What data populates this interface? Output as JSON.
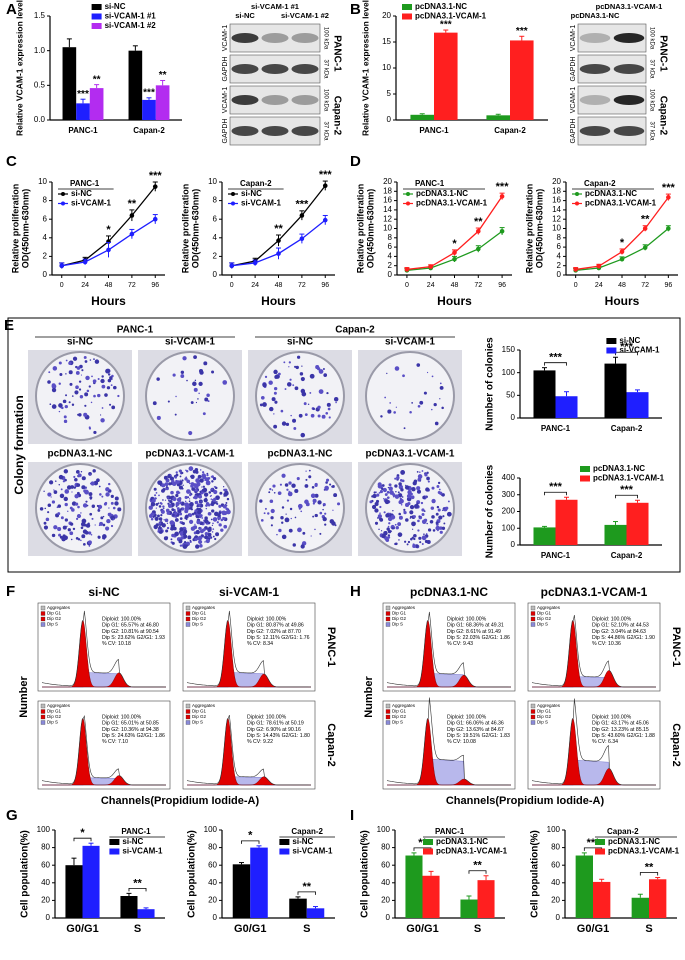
{
  "panel_labels": [
    "A",
    "B",
    "C",
    "D",
    "E",
    "F",
    "G",
    "H",
    "I"
  ],
  "blots": [
    {
      "lanes": [
        "si-NC",
        "si-VCAM-1 #1",
        "si-VCAM-1 #2"
      ],
      "rows": [
        "VCAM-1",
        "GAPDH",
        "VCAM-1",
        "GAPDH"
      ],
      "sizes": [
        "100 kDa",
        "37 kDa",
        "100 kDa",
        "37 kDa"
      ],
      "cell_lines": [
        "PANC-1",
        "Capan-2"
      ]
    },
    {
      "lanes": [
        "pcDNA3.1-NC",
        "pcDNA3.1-VCAM-1"
      ],
      "rows": [
        "VCAM-1",
        "GAPDH",
        "VCAM-1",
        "GAPDH"
      ],
      "sizes": [
        "100 kDa",
        "37 kDa",
        "100 kDa",
        "37 kDa"
      ],
      "cell_lines": [
        "PANC-1",
        "Capan-2"
      ]
    }
  ],
  "colony_formation": {
    "title": "Colony formation",
    "cell_lines": [
      "PANC-1",
      "Capan-2"
    ],
    "plates": [
      [
        "si-NC",
        "si-VCAM-1",
        "si-NC",
        "si-VCAM-1"
      ],
      [
        "pcDNA3.1-NC",
        "pcDNA3.1-VCAM-1",
        "pcDNA3.1-NC",
        "pcDNA3.1-VCAM-1"
      ]
    ]
  },
  "flow_cytometry": [
    {
      "conditions": [
        "si-NC",
        "si-VCAM-1"
      ],
      "cell_lines": [
        "PANC-1",
        "Capan-2"
      ],
      "legend": [
        "Aggregates",
        "Dip G1",
        "Dip G2",
        "Dip S"
      ],
      "y_label": "Number",
      "x_label": "Channels(Propidium Iodide-A)",
      "stats": [
        [
          [
            "Diploid: 100.00%",
            "Dip G1: 65.57% at 46.80",
            "Dip G2: 10.81% at 90.54",
            "Dip S: 23.62% G2/G1: 1.93",
            "% CV: 10.18"
          ],
          [
            "Diploid: 100.00%",
            "Dip G1: 80.87% at 49.86",
            "Dip G2: 7.02% at 87.70",
            "Dip S: 12.11% G2/G1: 1.76",
            "% CV: 8.34"
          ]
        ],
        [
          [
            "Diploid: 100.00%",
            "Dip G1: 65.01% at 50.85",
            "Dip G2: 10.36% at 94.38",
            "Dip S: 24.63% G2/G1: 1.86",
            "% CV: 7.10"
          ],
          [
            "Diploid: 100.00%",
            "Dip G1: 78.61% at 50.19",
            "Dip G2: 6.90% at 90.16",
            "Dip S: 14.43% G2/G1: 1.80",
            "% CV: 9.22"
          ]
        ]
      ]
    },
    {
      "conditions": [
        "pcDNA3.1-NC",
        "pcDNA3.1-VCAM-1"
      ],
      "cell_lines": [
        "PANC-1",
        "Capan-2"
      ],
      "legend": [
        "Aggregates",
        "Dip G1",
        "Dip G2",
        "Dip S"
      ],
      "y_label": "Number",
      "x_label": "Channels(Propidium Iodide-A)",
      "stats": [
        [
          [
            "Diploid: 100.00%",
            "Dip G1: 68.36% at 49.31",
            "Dip G2: 8.61% at 91.49",
            "Dip S: 22.03% G2/G1: 1.86",
            "% CV: 9.43"
          ],
          [
            "Diploid: 100.00%",
            "Dip G1: 52.10% at 44.53",
            "Dip G2: 3.04% at 84.63",
            "Dip S: 44.86% G2/G1: 1.90",
            "% CV: 10.36"
          ]
        ],
        [
          [
            "Diploid: 100.00%",
            "Dip G1: 66.06% at 46.36",
            "Dip G2: 13.63% at 84.67",
            "Dip S: 19.51% G2/G1: 1.83",
            "% CV: 10.08"
          ],
          [
            "Diploid: 100.00%",
            "Dip G1: 43.17% at 45.06",
            "Dip G2: 13.23% at 85.15",
            "Dip S: 43.60% G2/G1: 1.88",
            "% CV: 6.34"
          ]
        ]
      ]
    }
  ],
  "chart_data": [
    {
      "type": "bar",
      "y_label": "Relative VCAM-1 expression level",
      "categories": [
        "PANC-1",
        "Capan-2"
      ],
      "legend": "upper center",
      "ylim": [
        0,
        1.5
      ],
      "yticks": [
        {
          "value": 0,
          "label": "0.0"
        },
        0.5,
        {
          "value": 1,
          "label": "1.0"
        },
        1.5
      ],
      "series": [
        {
          "name": "si-NC",
          "color": "#000000",
          "values": [
            1.05,
            1.0
          ],
          "errors": [
            0.12,
            0.07
          ]
        },
        {
          "name": "si-VCAM-1 #1",
          "color": "#1f1fff",
          "values": [
            0.24,
            0.29
          ],
          "errors": [
            0.06,
            0.03
          ],
          "significance": [
            "***",
            "***"
          ]
        },
        {
          "name": "si-VCAM-1 #2",
          "color": "#b32cf0",
          "values": [
            0.46,
            0.5
          ],
          "errors": [
            0.05,
            0.07
          ],
          "significance": [
            "**",
            "**"
          ]
        }
      ]
    },
    {
      "type": "bar",
      "y_label": "Relative VCAM-1 expression level",
      "categories": [
        "PANC-1",
        "Capan-2"
      ],
      "legend": "upper left",
      "ylim": [
        0,
        20
      ],
      "yticks": [
        0,
        5,
        10,
        15,
        20
      ],
      "series": [
        {
          "name": "pcDNA3.1-NC",
          "color": "#1e9a1e",
          "values": [
            1.0,
            0.9
          ],
          "errors": [
            0.2,
            0.2
          ]
        },
        {
          "name": "pcDNA3.1-VCAM-1",
          "color": "#ff1f1f",
          "values": [
            16.8,
            15.3
          ],
          "errors": [
            0.5,
            0.8
          ],
          "significance": [
            "***",
            "***"
          ]
        }
      ]
    },
    {
      "type": "line",
      "legend_title": "PANC-1",
      "legend": "upper left",
      "x_label": "Hours",
      "y_label": [
        "Relative proliferation",
        "OD(450nm-630nm)"
      ],
      "x": [
        0,
        24,
        48,
        72,
        96
      ],
      "xlim": [
        -10,
        106
      ],
      "xticks": [
        0,
        24,
        48,
        72,
        96
      ],
      "ylim": [
        0,
        10
      ],
      "yticks": [
        0,
        2,
        4,
        6,
        8,
        10
      ],
      "significance": [
        null,
        null,
        "*",
        "**",
        "***"
      ],
      "series": [
        {
          "name": "si-NC",
          "color": "#000000",
          "values": [
            1.0,
            1.6,
            3.6,
            6.4,
            9.5
          ],
          "errors": [
            0.3,
            0.3,
            0.6,
            0.6,
            0.5
          ]
        },
        {
          "name": "si-VCAM-1",
          "color": "#1f1fff",
          "values": [
            1.0,
            1.4,
            2.7,
            4.4,
            6.0
          ],
          "errors": [
            0.3,
            0.3,
            0.8,
            0.5,
            0.5
          ]
        }
      ]
    },
    {
      "type": "line",
      "legend_title": "Capan-2",
      "legend": "upper left",
      "x_label": "Hours",
      "y_label": [
        "Relative proliferation",
        "OD(450nm-630nm)"
      ],
      "x": [
        0,
        24,
        48,
        72,
        96
      ],
      "xlim": [
        -10,
        106
      ],
      "xticks": [
        0,
        24,
        48,
        72,
        96
      ],
      "ylim": [
        0,
        10
      ],
      "yticks": [
        0,
        2,
        4,
        6,
        8,
        10
      ],
      "significance": [
        null,
        null,
        "**",
        "***",
        "***"
      ],
      "series": [
        {
          "name": "si-NC",
          "color": "#000000",
          "values": [
            1.0,
            1.5,
            3.7,
            6.4,
            9.6
          ],
          "errors": [
            0.3,
            0.3,
            0.6,
            0.5,
            0.5
          ]
        },
        {
          "name": "si-VCAM-1",
          "color": "#1f1fff",
          "values": [
            1.0,
            1.3,
            2.3,
            3.9,
            5.9
          ],
          "errors": [
            0.3,
            0.3,
            0.6,
            0.5,
            0.5
          ]
        }
      ]
    },
    {
      "type": "line",
      "legend_title": "PANC-1",
      "legend": "upper left",
      "x_label": "Hours",
      "y_label": [
        "Relative proliferation",
        "OD(450nm-630nm)"
      ],
      "x": [
        0,
        24,
        48,
        72,
        96
      ],
      "xlim": [
        -10,
        106
      ],
      "xticks": [
        0,
        24,
        48,
        72,
        96
      ],
      "ylim": [
        0,
        20
      ],
      "yticks": [
        0,
        2,
        4,
        6,
        8,
        10,
        12,
        14,
        16,
        18,
        20
      ],
      "significance": [
        null,
        null,
        "*",
        "**",
        "***"
      ],
      "series": [
        {
          "name": "pcDNA3.1-NC",
          "color": "#1e9a1e",
          "values": [
            1.0,
            1.5,
            3.4,
            5.6,
            9.4
          ],
          "errors": [
            0.4,
            0.4,
            0.6,
            0.7,
            0.8
          ]
        },
        {
          "name": "pcDNA3.1-VCAM-1",
          "color": "#ff1f1f",
          "values": [
            1.2,
            1.8,
            4.8,
            9.4,
            16.9
          ],
          "errors": [
            0.4,
            0.4,
            0.6,
            0.7,
            0.7
          ]
        }
      ]
    },
    {
      "type": "line",
      "legend_title": "Capan-2",
      "legend": "upper left",
      "x_label": "Hours",
      "y_label": [
        "Relative proliferation",
        "OD(450nm-630nm)"
      ],
      "x": [
        0,
        24,
        48,
        72,
        96
      ],
      "xlim": [
        -10,
        106
      ],
      "xticks": [
        0,
        24,
        48,
        72,
        96
      ],
      "ylim": [
        0,
        20
      ],
      "yticks": [
        0,
        2,
        4,
        6,
        8,
        10,
        12,
        14,
        16,
        18,
        20
      ],
      "significance": [
        null,
        null,
        "*",
        "**",
        "***"
      ],
      "series": [
        {
          "name": "pcDNA3.1-NC",
          "color": "#1e9a1e",
          "values": [
            1.0,
            1.5,
            3.4,
            5.9,
            10.0
          ],
          "errors": [
            0.4,
            0.4,
            0.5,
            0.6,
            0.6
          ]
        },
        {
          "name": "pcDNA3.1-VCAM-1",
          "color": "#ff1f1f",
          "values": [
            1.2,
            1.9,
            5.0,
            10.0,
            16.7
          ],
          "errors": [
            0.4,
            0.4,
            0.6,
            0.6,
            0.7
          ]
        }
      ]
    },
    {
      "type": "bar",
      "y_label": "Number of colonies",
      "categories": [
        "PANC-1",
        "Capan-2"
      ],
      "legend": "upper right",
      "ylim": [
        0,
        150
      ],
      "yticks": [
        0,
        50,
        100,
        150
      ],
      "significance": [
        "***",
        "***"
      ],
      "series": [
        {
          "name": "si-NC",
          "color": "#000000",
          "values": [
            105,
            120
          ],
          "errors": [
            6,
            14
          ]
        },
        {
          "name": "si-VCAM-1",
          "color": "#1f1fff",
          "values": [
            48,
            57
          ],
          "errors": [
            10,
            5
          ]
        }
      ]
    },
    {
      "type": "bar",
      "y_label": "Number of colonies",
      "categories": [
        "PANC-1",
        "Capan-2"
      ],
      "legend": "upper right",
      "ylim": [
        0,
        400
      ],
      "yticks": [
        0,
        100,
        200,
        300,
        400
      ],
      "significance": [
        "***",
        "***"
      ],
      "series": [
        {
          "name": "pcDNA3.1-NC",
          "color": "#1e9a1e",
          "values": [
            105,
            120
          ],
          "errors": [
            6,
            20
          ]
        },
        {
          "name": "pcDNA3.1-VCAM-1",
          "color": "#ff1f1f",
          "values": [
            270,
            252
          ],
          "errors": [
            15,
            15
          ]
        }
      ]
    },
    {
      "type": "bar",
      "y_label": "Cell population(%)",
      "legend_title": "PANC-1",
      "legend": "upper right",
      "categories": [
        "G0/G1",
        "S"
      ],
      "ylim": [
        0,
        100
      ],
      "yticks": [
        0,
        20,
        40,
        60,
        80,
        100
      ],
      "significance": [
        "*",
        "**"
      ],
      "series": [
        {
          "name": "si-NC",
          "color": "#000000",
          "values": [
            60,
            25
          ],
          "errors": [
            8,
            3
          ]
        },
        {
          "name": "si-VCAM-1",
          "color": "#1f1fff",
          "values": [
            82,
            10
          ],
          "errors": [
            3,
            1.5
          ]
        }
      ]
    },
    {
      "type": "bar",
      "y_label": "Cell population(%)",
      "legend_title": "Capan-2",
      "legend": "upper right",
      "categories": [
        "G0/G1",
        "S"
      ],
      "ylim": [
        0,
        100
      ],
      "yticks": [
        0,
        20,
        40,
        60,
        80,
        100
      ],
      "significance": [
        "*",
        "**"
      ],
      "series": [
        {
          "name": "si-NC",
          "color": "#000000",
          "values": [
            61,
            22
          ],
          "errors": [
            2,
            2
          ]
        },
        {
          "name": "si-VCAM-1",
          "color": "#1f1fff",
          "values": [
            80,
            11
          ],
          "errors": [
            2,
            2
          ]
        }
      ]
    },
    {
      "type": "bar",
      "y_label": "Cell population(%)",
      "legend_title": "PANC-1",
      "legend": "upper right",
      "categories": [
        "G0/G1",
        "S"
      ],
      "ylim": [
        0,
        100
      ],
      "yticks": [
        0,
        20,
        40,
        60,
        80,
        100
      ],
      "significance": [
        "**",
        "**"
      ],
      "series": [
        {
          "name": "pcDNA3.1-NC",
          "color": "#1e9a1e",
          "values": [
            71,
            21
          ],
          "errors": [
            3,
            4
          ]
        },
        {
          "name": "pcDNA3.1-VCAM-1",
          "color": "#ff1f1f",
          "values": [
            48,
            43
          ],
          "errors": [
            5,
            5
          ]
        }
      ]
    },
    {
      "type": "bar",
      "y_label": "Cell population(%)",
      "legend_title": "Capan-2",
      "legend": "upper right",
      "categories": [
        "G0/G1",
        "S"
      ],
      "ylim": [
        0,
        100
      ],
      "yticks": [
        0,
        20,
        40,
        60,
        80,
        100
      ],
      "significance": [
        "***",
        "**"
      ],
      "series": [
        {
          "name": "pcDNA3.1-NC",
          "color": "#1e9a1e",
          "values": [
            71,
            23
          ],
          "errors": [
            3,
            4
          ]
        },
        {
          "name": "pcDNA3.1-VCAM-1",
          "color": "#ff1f1f",
          "values": [
            41,
            44
          ],
          "errors": [
            3,
            2
          ]
        }
      ]
    }
  ]
}
